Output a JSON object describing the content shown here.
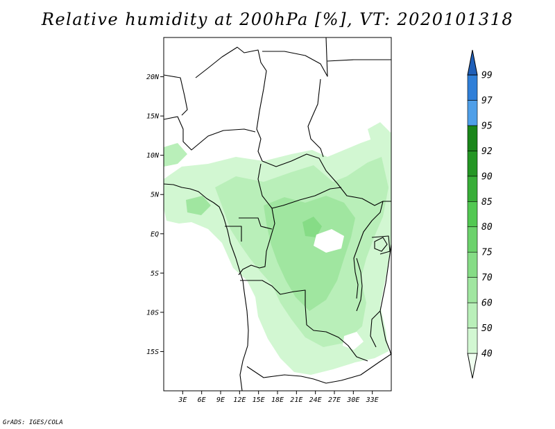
{
  "title": "Relative humidity at 200hPa [%], VT: 2020101318",
  "credit": "GrADS: IGES/COLA",
  "map": {
    "lon_range": [
      0,
      36
    ],
    "lat_range": [
      -20,
      25
    ],
    "lat_labels": [
      {
        "value": 20,
        "label": "20N"
      },
      {
        "value": 15,
        "label": "15N"
      },
      {
        "value": 10,
        "label": "10N"
      },
      {
        "value": 5,
        "label": "5N"
      },
      {
        "value": 0,
        "label": "EQ"
      },
      {
        "value": -5,
        "label": "5S"
      },
      {
        "value": -10,
        "label": "10S"
      },
      {
        "value": -15,
        "label": "15S"
      }
    ],
    "lon_labels": [
      {
        "value": 3,
        "label": "3E"
      },
      {
        "value": 6,
        "label": "6E"
      },
      {
        "value": 9,
        "label": "9E"
      },
      {
        "value": 12,
        "label": "12E"
      },
      {
        "value": 15,
        "label": "15E"
      },
      {
        "value": 18,
        "label": "18E"
      },
      {
        "value": 21,
        "label": "21E"
      },
      {
        "value": 24,
        "label": "24E"
      },
      {
        "value": 27,
        "label": "27E"
      },
      {
        "value": 30,
        "label": "30E"
      },
      {
        "value": 33,
        "label": "33E"
      }
    ]
  },
  "colorbar": {
    "levels": [
      "40",
      "50",
      "60",
      "70",
      "75",
      "80",
      "85",
      "90",
      "92",
      "95",
      "97",
      "99"
    ],
    "colors": [
      "#f0fff0",
      "#d2f7d2",
      "#b9efb9",
      "#a0e6a0",
      "#86dc86",
      "#6cd26c",
      "#52c852",
      "#38ae38",
      "#249624",
      "#1a861a",
      "#4f9fe8",
      "#2f7fd8",
      "#1f5fb8"
    ]
  }
}
